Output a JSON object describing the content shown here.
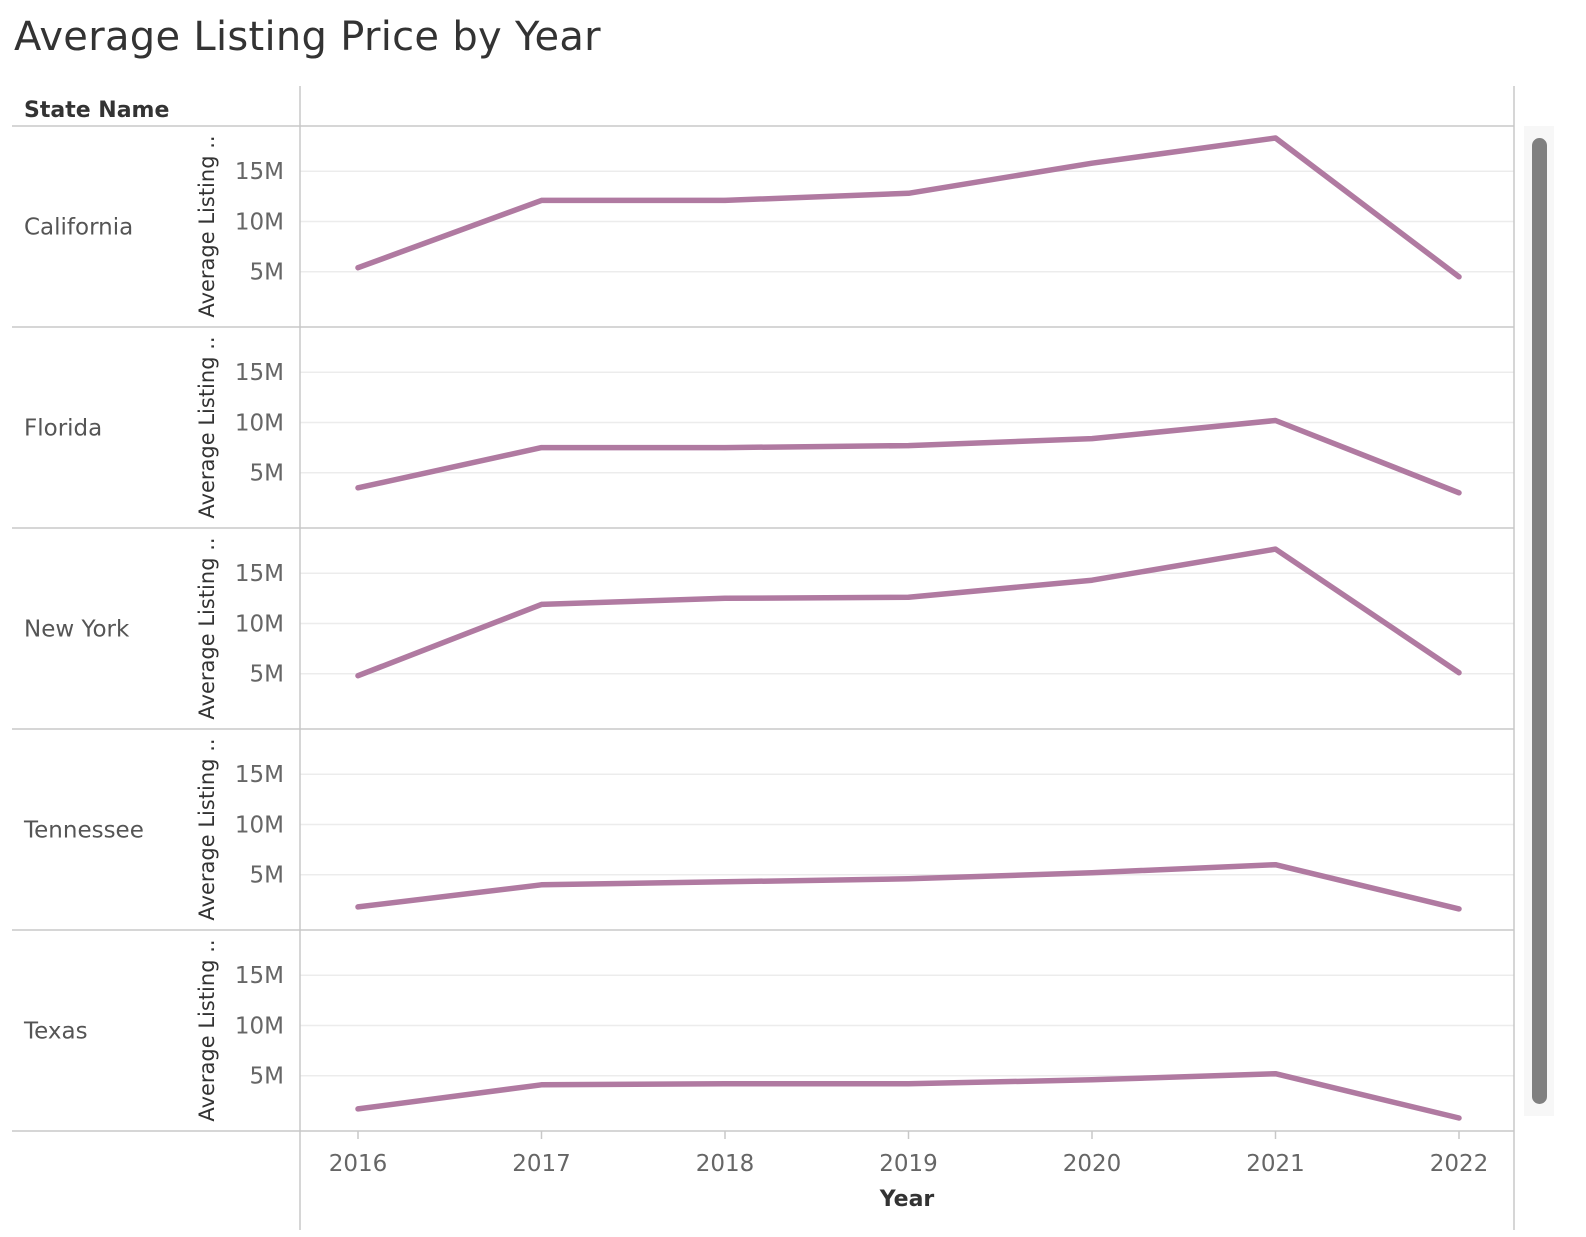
{
  "title": "Average Listing Price by Year",
  "row_header": "State Name",
  "chart_data": {
    "type": "line",
    "title": "Average Listing Price by Year",
    "xlabel": "Year",
    "ylabel": "Average Listing ..",
    "row_dimension": "State Name",
    "x": [
      "2016",
      "2017",
      "2018",
      "2019",
      "2020",
      "2021",
      "2022"
    ],
    "ylim": [
      0,
      19000000
    ],
    "y_ticks": [
      {
        "value": 5000000,
        "label": "5M"
      },
      {
        "value": 10000000,
        "label": "10M"
      },
      {
        "value": 15000000,
        "label": "15M"
      }
    ],
    "grid": true,
    "line_color": "#b07aa1",
    "series": [
      {
        "name": "California",
        "values": [
          5400000,
          12100000,
          12100000,
          12800000,
          15800000,
          18300000,
          4500000
        ]
      },
      {
        "name": "Florida",
        "values": [
          3500000,
          7500000,
          7500000,
          7700000,
          8400000,
          10200000,
          3000000
        ]
      },
      {
        "name": "New York",
        "values": [
          4800000,
          11900000,
          12500000,
          12600000,
          14300000,
          17400000,
          5100000
        ]
      },
      {
        "name": "Tennessee",
        "values": [
          1800000,
          4000000,
          4300000,
          4600000,
          5200000,
          6000000,
          1600000
        ]
      },
      {
        "name": "Texas",
        "values": [
          1700000,
          4100000,
          4200000,
          4200000,
          4600000,
          5200000,
          800000
        ]
      }
    ]
  }
}
